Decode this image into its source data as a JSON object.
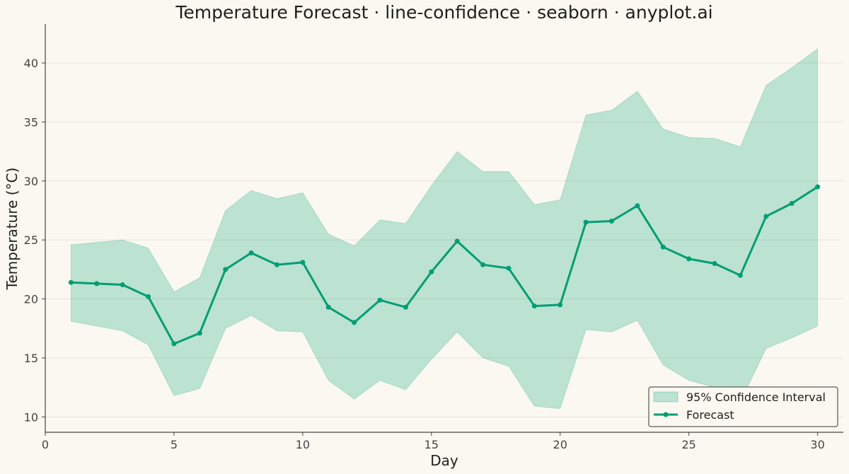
{
  "chart_data": {
    "type": "line",
    "title": "Temperature Forecast · line-confidence · seaborn · anyplot.ai",
    "xlabel": "Day",
    "ylabel": "Temperature (°C)",
    "xlim": [
      0,
      31
    ],
    "ylim": [
      8.7,
      43.3
    ],
    "x_ticks": [
      0,
      5,
      10,
      15,
      20,
      25,
      30
    ],
    "y_ticks": [
      10,
      15,
      20,
      25,
      30,
      35,
      40
    ],
    "grid": "horizontal",
    "legend_position": "bottom-right",
    "colors": {
      "line": "#009E73",
      "band": "#009E73",
      "background": "#FBF8F1",
      "grid": "#E8E3D8",
      "axis": "#444444"
    },
    "x": [
      1,
      2,
      3,
      4,
      5,
      6,
      7,
      8,
      9,
      10,
      11,
      12,
      13,
      14,
      15,
      16,
      17,
      18,
      19,
      20,
      21,
      22,
      23,
      24,
      25,
      26,
      27,
      28,
      29,
      30
    ],
    "series": [
      {
        "name": "Forecast",
        "values": [
          21.4,
          21.3,
          21.2,
          20.2,
          16.2,
          17.1,
          22.5,
          23.9,
          22.9,
          23.1,
          19.3,
          18.0,
          19.9,
          19.3,
          22.3,
          24.9,
          22.9,
          22.6,
          19.4,
          19.5,
          26.5,
          26.6,
          27.9,
          24.4,
          23.4,
          23.0,
          22.0,
          27.0,
          28.1,
          29.5
        ]
      }
    ],
    "band": {
      "name": "95% Confidence Interval",
      "lower": [
        18.1,
        17.7,
        17.3,
        16.1,
        11.8,
        12.4,
        17.5,
        18.6,
        17.3,
        17.2,
        13.1,
        11.5,
        13.1,
        12.3,
        14.9,
        17.2,
        15.0,
        14.3,
        10.9,
        10.7,
        17.4,
        17.2,
        18.2,
        14.4,
        13.1,
        12.5,
        11.3,
        15.8,
        16.7,
        17.7
      ],
      "upper": [
        24.6,
        24.8,
        25.0,
        24.3,
        20.6,
        21.8,
        27.5,
        29.2,
        28.5,
        29.0,
        25.5,
        24.5,
        26.7,
        26.4,
        29.6,
        32.5,
        30.8,
        30.8,
        28.0,
        28.4,
        35.6,
        36.0,
        37.6,
        34.4,
        33.7,
        33.6,
        32.9,
        38.1,
        39.6,
        41.2
      ]
    }
  }
}
